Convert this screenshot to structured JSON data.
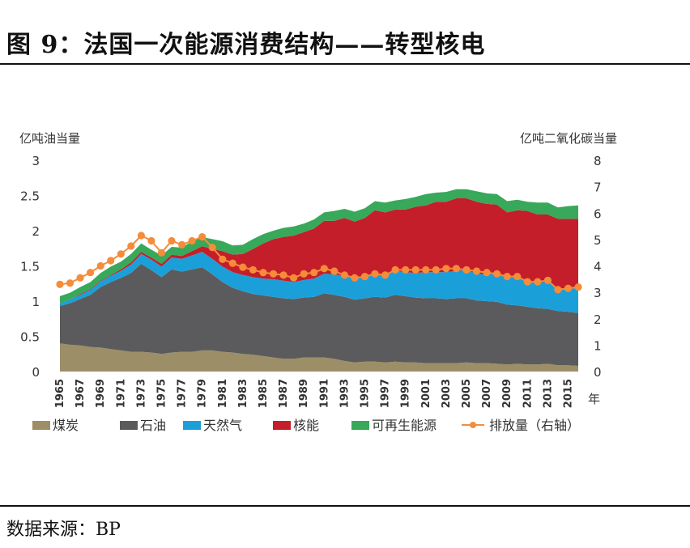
{
  "header": {
    "title": "图 9：法国一次能源消费结构——转型核电"
  },
  "footer": {
    "source": "数据来源：BP"
  },
  "colors": {
    "coal": "#9c8e66",
    "oil": "#5b5b5d",
    "gas": "#1b9fd9",
    "nuclear": "#c41e2a",
    "renewables": "#38a85a",
    "emissions": "#f58c3a"
  },
  "chart_data": {
    "type": "area",
    "ylabel": "亿吨油当量",
    "ylabel_right": "亿吨二氧化碳当量",
    "xlabel": "年",
    "ylim": [
      0,
      3
    ],
    "ylim_right": [
      0,
      8
    ],
    "yticks": [
      "0",
      "0.5",
      "1",
      "1.5",
      "2",
      "2.5",
      "3"
    ],
    "yticks_right": [
      "0",
      "1",
      "2",
      "3",
      "4",
      "5",
      "6",
      "7",
      "8"
    ],
    "xticks": [
      "1965",
      "1967",
      "1969",
      "1971",
      "1973",
      "1975",
      "1977",
      "1979",
      "1981",
      "1983",
      "1985",
      "1987",
      "1989",
      "1991",
      "1993",
      "1995",
      "1997",
      "1999",
      "2001",
      "2003",
      "2005",
      "2007",
      "2009",
      "2011",
      "2013",
      "2015"
    ],
    "x": [
      1965,
      1966,
      1967,
      1968,
      1969,
      1970,
      1971,
      1972,
      1973,
      1974,
      1975,
      1976,
      1977,
      1978,
      1979,
      1980,
      1981,
      1982,
      1983,
      1984,
      1985,
      1986,
      1987,
      1988,
      1989,
      1990,
      1991,
      1992,
      1993,
      1994,
      1995,
      1996,
      1997,
      1998,
      1999,
      2000,
      2001,
      2002,
      2003,
      2004,
      2005,
      2006,
      2007,
      2008,
      2009,
      2010,
      2011,
      2012,
      2013,
      2014,
      2015,
      2016
    ],
    "stacked": true,
    "series": [
      {
        "name": "煤炭",
        "key": "coal",
        "values": [
          0.4,
          0.38,
          0.37,
          0.35,
          0.34,
          0.32,
          0.3,
          0.28,
          0.28,
          0.27,
          0.25,
          0.27,
          0.28,
          0.28,
          0.3,
          0.3,
          0.28,
          0.27,
          0.25,
          0.24,
          0.22,
          0.2,
          0.18,
          0.18,
          0.2,
          0.2,
          0.2,
          0.18,
          0.15,
          0.13,
          0.14,
          0.14,
          0.13,
          0.14,
          0.13,
          0.13,
          0.12,
          0.12,
          0.12,
          0.12,
          0.13,
          0.12,
          0.12,
          0.11,
          0.1,
          0.11,
          0.1,
          0.1,
          0.11,
          0.09,
          0.09,
          0.08
        ]
      },
      {
        "name": "石油",
        "key": "oil",
        "values": [
          0.53,
          0.59,
          0.66,
          0.74,
          0.86,
          0.95,
          1.03,
          1.12,
          1.25,
          1.17,
          1.09,
          1.18,
          1.14,
          1.17,
          1.18,
          1.08,
          0.99,
          0.92,
          0.89,
          0.86,
          0.86,
          0.86,
          0.86,
          0.85,
          0.85,
          0.86,
          0.91,
          0.91,
          0.91,
          0.89,
          0.9,
          0.92,
          0.92,
          0.95,
          0.94,
          0.92,
          0.92,
          0.92,
          0.91,
          0.92,
          0.91,
          0.89,
          0.88,
          0.88,
          0.85,
          0.83,
          0.82,
          0.8,
          0.78,
          0.77,
          0.76,
          0.75
        ]
      },
      {
        "name": "天然气",
        "key": "gas",
        "values": [
          0.04,
          0.05,
          0.06,
          0.07,
          0.08,
          0.09,
          0.1,
          0.12,
          0.14,
          0.15,
          0.15,
          0.17,
          0.18,
          0.2,
          0.22,
          0.22,
          0.22,
          0.22,
          0.23,
          0.24,
          0.24,
          0.25,
          0.25,
          0.24,
          0.25,
          0.26,
          0.28,
          0.29,
          0.3,
          0.3,
          0.3,
          0.33,
          0.32,
          0.34,
          0.34,
          0.35,
          0.37,
          0.37,
          0.38,
          0.39,
          0.4,
          0.38,
          0.38,
          0.39,
          0.38,
          0.4,
          0.36,
          0.37,
          0.38,
          0.32,
          0.33,
          0.36
        ]
      },
      {
        "name": "核能",
        "key": "nuclear",
        "values": [
          0.0,
          0.0,
          0.01,
          0.01,
          0.01,
          0.01,
          0.02,
          0.03,
          0.03,
          0.03,
          0.04,
          0.04,
          0.04,
          0.06,
          0.08,
          0.14,
          0.22,
          0.25,
          0.3,
          0.4,
          0.5,
          0.57,
          0.62,
          0.66,
          0.68,
          0.71,
          0.75,
          0.76,
          0.82,
          0.81,
          0.84,
          0.9,
          0.89,
          0.87,
          0.89,
          0.94,
          0.95,
          1.0,
          1.0,
          1.03,
          1.02,
          1.02,
          1.0,
          0.99,
          0.93,
          0.95,
          1.0,
          0.96,
          0.96,
          0.99,
          0.99,
          0.98
        ]
      },
      {
        "name": "可再生能源",
        "key": "renewables",
        "values": [
          0.1,
          0.1,
          0.1,
          0.1,
          0.11,
          0.12,
          0.11,
          0.12,
          0.12,
          0.11,
          0.12,
          0.11,
          0.12,
          0.14,
          0.13,
          0.14,
          0.14,
          0.13,
          0.13,
          0.14,
          0.13,
          0.12,
          0.13,
          0.13,
          0.12,
          0.13,
          0.12,
          0.14,
          0.13,
          0.14,
          0.14,
          0.13,
          0.14,
          0.13,
          0.15,
          0.14,
          0.16,
          0.13,
          0.14,
          0.13,
          0.13,
          0.15,
          0.15,
          0.15,
          0.16,
          0.15,
          0.13,
          0.17,
          0.17,
          0.16,
          0.18,
          0.19
        ]
      }
    ],
    "line": {
      "name": "排放量（右轴）",
      "key": "emissions",
      "axis": "right",
      "values": [
        3.3,
        3.35,
        3.55,
        3.75,
        4.0,
        4.2,
        4.45,
        4.75,
        5.15,
        4.95,
        4.5,
        4.95,
        4.8,
        4.95,
        5.1,
        4.7,
        4.25,
        4.1,
        3.95,
        3.85,
        3.75,
        3.7,
        3.65,
        3.55,
        3.7,
        3.75,
        3.9,
        3.8,
        3.65,
        3.55,
        3.6,
        3.7,
        3.65,
        3.85,
        3.85,
        3.85,
        3.85,
        3.85,
        3.9,
        3.9,
        3.85,
        3.8,
        3.75,
        3.7,
        3.6,
        3.6,
        3.4,
        3.4,
        3.45,
        3.1,
        3.15,
        3.2
      ]
    },
    "legend": {
      "position": "bottom"
    },
    "grid": false
  }
}
